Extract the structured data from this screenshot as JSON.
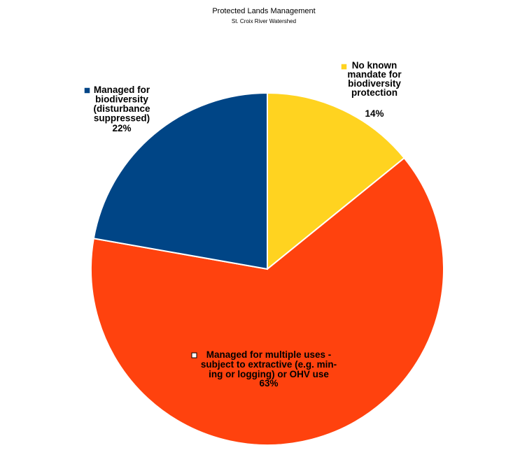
{
  "chart_data": {
    "type": "pie",
    "title": "Protected Lands Management",
    "subtitle": "St. Croix River Watershed",
    "start_angle_deg": 0,
    "direction": "clockwise",
    "slices": [
      {
        "label": "No known mandate for biodiversity protection",
        "label_lines": [
          "No known",
          "mandate for",
          "biodiversity",
          "protection"
        ],
        "value": 14,
        "value_label": "14%",
        "color": "#FFD320"
      },
      {
        "label": "Managed for multiple uses - subject to extractive (e.g. mining or logging) or OHV use",
        "label_lines": [
          "Managed for multiple uses -",
          "subject to extractive (e.g. min-",
          "ing or logging) or OHV use"
        ],
        "value": 63,
        "value_label": "63%",
        "color": "#FF420E"
      },
      {
        "label": "Managed for biodiversity (disturbance suppressed)",
        "label_lines": [
          "Managed for",
          "biodiversity",
          "(disturbance",
          "suppressed)"
        ],
        "value": 22,
        "value_label": "22%",
        "color": "#004586"
      }
    ]
  }
}
